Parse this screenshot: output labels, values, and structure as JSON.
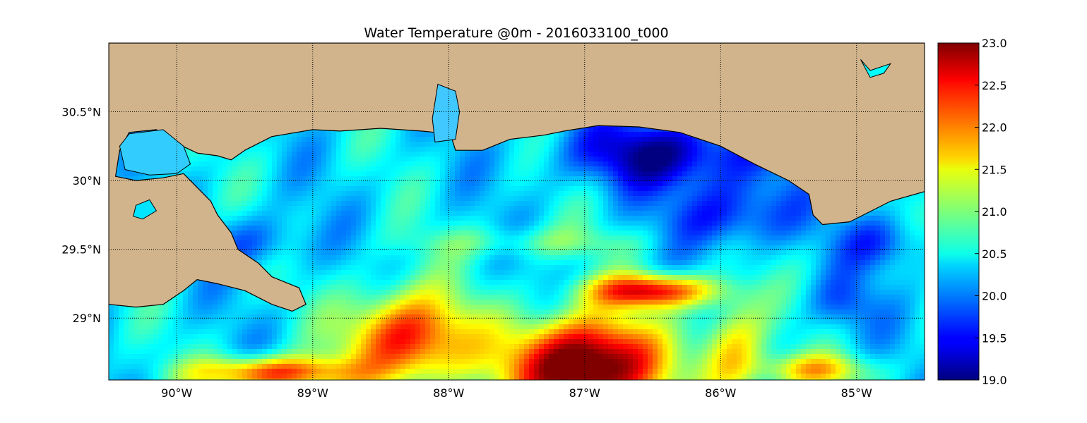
{
  "title": "Water Temperature @0m - 2016033100_t000",
  "chart_data": {
    "type": "heatmap",
    "title": "Water Temperature @0m - 2016033100_t000",
    "projection": "map",
    "x_range": [
      -90.5,
      -84.5
    ],
    "y_range": [
      28.55,
      31.0
    ],
    "x_ticks": [
      {
        "value": -90,
        "label": "90°W"
      },
      {
        "value": -89,
        "label": "89°W"
      },
      {
        "value": -88,
        "label": "88°W"
      },
      {
        "value": -87,
        "label": "87°W"
      },
      {
        "value": -86,
        "label": "86°W"
      },
      {
        "value": -85,
        "label": "85°W"
      }
    ],
    "y_ticks": [
      {
        "value": 30.5,
        "label": "30.5°N"
      },
      {
        "value": 30.0,
        "label": "30°N"
      },
      {
        "value": 29.5,
        "label": "29.5°N"
      },
      {
        "value": 29.0,
        "label": "29°N"
      }
    ],
    "grid": true,
    "colormap": "jet",
    "land_color": "#d2b48c",
    "colorbar": {
      "min": 19.0,
      "max": 23.0,
      "ticks": [
        {
          "value": 23.0,
          "label": "23.0"
        },
        {
          "value": 22.5,
          "label": "22.5"
        },
        {
          "value": 22.0,
          "label": "22.0"
        },
        {
          "value": 21.5,
          "label": "21.5"
        },
        {
          "value": 21.0,
          "label": "21.0"
        },
        {
          "value": 20.5,
          "label": "20.5"
        },
        {
          "value": 20.0,
          "label": "20.0"
        },
        {
          "value": 19.5,
          "label": "19.5"
        },
        {
          "value": 19.0,
          "label": "19.0"
        }
      ]
    },
    "temperature_field": {
      "background_c": 20.4,
      "features": [
        {
          "lon": -87.0,
          "lat": 28.65,
          "slon": 0.55,
          "slat": 0.35,
          "amp": 3.2
        },
        {
          "lon": -86.5,
          "lat": 29.2,
          "slon": 0.45,
          "slat": 0.12,
          "amp": 2.1
        },
        {
          "lon": -88.3,
          "lat": 28.85,
          "slon": 0.45,
          "slat": 0.35,
          "amp": 2.2
        },
        {
          "lon": -89.3,
          "lat": 28.6,
          "slon": 0.55,
          "slat": 0.12,
          "amp": 2.0
        },
        {
          "lon": -85.9,
          "lat": 28.75,
          "slon": 0.25,
          "slat": 0.4,
          "amp": 1.3
        },
        {
          "lon": -85.3,
          "lat": 28.62,
          "slon": 0.4,
          "slat": 0.12,
          "amp": 1.2
        },
        {
          "lon": -86.4,
          "lat": 30.2,
          "slon": 0.7,
          "slat": 0.25,
          "amp": -1.3
        },
        {
          "lon": -85.9,
          "lat": 29.75,
          "slon": 0.45,
          "slat": 0.25,
          "amp": -0.9
        },
        {
          "lon": -84.8,
          "lat": 29.55,
          "slon": 0.3,
          "slat": 0.2,
          "amp": -0.7
        },
        {
          "lon": -89.4,
          "lat": 29.55,
          "slon": 0.35,
          "slat": 0.2,
          "amp": -0.6
        },
        {
          "lon": -85.1,
          "lat": 29.1,
          "slon": 0.25,
          "slat": 0.2,
          "amp": -0.5
        },
        {
          "lon": -87.4,
          "lat": 29.55,
          "slon": 0.8,
          "slat": 0.12,
          "amp": 0.5
        }
      ]
    },
    "land_polygons": [
      {
        "name": "mainland-coast",
        "points": [
          [
            -90.5,
            31.0
          ],
          [
            -84.5,
            31.0
          ],
          [
            -84.5,
            29.92
          ],
          [
            -84.75,
            29.85
          ],
          [
            -84.95,
            29.75
          ],
          [
            -85.05,
            29.7
          ],
          [
            -85.25,
            29.68
          ],
          [
            -85.32,
            29.75
          ],
          [
            -85.35,
            29.9
          ],
          [
            -85.5,
            30.0
          ],
          [
            -85.75,
            30.12
          ],
          [
            -86.0,
            30.25
          ],
          [
            -86.3,
            30.35
          ],
          [
            -86.6,
            30.39
          ],
          [
            -86.9,
            30.4
          ],
          [
            -87.15,
            30.36
          ],
          [
            -87.3,
            30.33
          ],
          [
            -87.55,
            30.3
          ],
          [
            -87.75,
            30.22
          ],
          [
            -87.95,
            30.22
          ],
          [
            -88.0,
            30.38
          ],
          [
            -88.05,
            30.65
          ],
          [
            -88.1,
            30.35
          ],
          [
            -88.2,
            30.36
          ],
          [
            -88.5,
            30.38
          ],
          [
            -88.8,
            30.36
          ],
          [
            -89.0,
            30.37
          ],
          [
            -89.3,
            30.32
          ],
          [
            -89.5,
            30.22
          ],
          [
            -89.6,
            30.15
          ],
          [
            -89.7,
            30.18
          ],
          [
            -89.85,
            30.2
          ],
          [
            -90.0,
            30.27
          ],
          [
            -90.15,
            30.37
          ],
          [
            -90.35,
            30.35
          ],
          [
            -90.42,
            30.22
          ],
          [
            -90.45,
            30.03
          ],
          [
            -90.3,
            30.0
          ],
          [
            -90.1,
            30.02
          ],
          [
            -89.95,
            30.05
          ],
          [
            -89.85,
            29.95
          ],
          [
            -89.75,
            29.85
          ],
          [
            -89.7,
            29.75
          ],
          [
            -89.6,
            29.62
          ],
          [
            -89.55,
            29.5
          ],
          [
            -89.4,
            29.4
          ],
          [
            -89.3,
            29.3
          ],
          [
            -89.1,
            29.22
          ],
          [
            -89.05,
            29.1
          ],
          [
            -89.15,
            29.05
          ],
          [
            -89.3,
            29.1
          ],
          [
            -89.5,
            29.2
          ],
          [
            -89.7,
            29.25
          ],
          [
            -89.85,
            29.28
          ],
          [
            -89.95,
            29.2
          ],
          [
            -90.1,
            29.1
          ],
          [
            -90.3,
            29.08
          ],
          [
            -90.5,
            29.1
          ]
        ]
      }
    ],
    "water_bodies": [
      {
        "name": "lake-pontchartrain",
        "color": "#33ccff",
        "points": [
          [
            -90.42,
            30.25
          ],
          [
            -90.35,
            30.34
          ],
          [
            -90.1,
            30.37
          ],
          [
            -89.95,
            30.25
          ],
          [
            -89.9,
            30.12
          ],
          [
            -90.0,
            30.05
          ],
          [
            -90.2,
            30.04
          ],
          [
            -90.38,
            30.08
          ]
        ]
      },
      {
        "name": "lake-salvador",
        "color": "#00e5ff",
        "points": [
          [
            -90.3,
            29.82
          ],
          [
            -90.2,
            29.86
          ],
          [
            -90.15,
            29.78
          ],
          [
            -90.25,
            29.72
          ],
          [
            -90.32,
            29.74
          ]
        ]
      },
      {
        "name": "mobile-bay",
        "color": "#40c8ff",
        "points": [
          [
            -88.08,
            30.7
          ],
          [
            -87.95,
            30.65
          ],
          [
            -87.92,
            30.5
          ],
          [
            -87.95,
            30.3
          ],
          [
            -88.1,
            30.28
          ],
          [
            -88.12,
            30.45
          ]
        ]
      },
      {
        "name": "inland-lake-ne",
        "color": "#00ffff",
        "points": [
          [
            -84.97,
            30.88
          ],
          [
            -84.9,
            30.75
          ],
          [
            -84.8,
            30.78
          ],
          [
            -84.75,
            30.85
          ],
          [
            -84.9,
            30.8
          ]
        ]
      }
    ]
  }
}
